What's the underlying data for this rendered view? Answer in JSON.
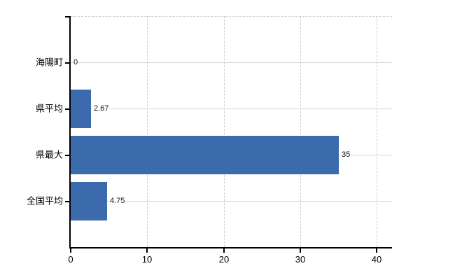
{
  "chart_data": {
    "type": "bar",
    "orientation": "horizontal",
    "title": "",
    "xlabel": "",
    "ylabel": "",
    "categories": [
      "海陽町",
      "県平均",
      "県最大",
      "全国平均"
    ],
    "values": [
      0,
      2.67,
      35,
      4.75
    ],
    "value_labels": [
      "0",
      "2.67",
      "35",
      "4.75"
    ],
    "x_ticks": [
      0,
      10,
      20,
      30,
      40
    ],
    "x_tick_labels": [
      "0",
      "10",
      "20",
      "30",
      "40"
    ],
    "xlim": [
      0,
      42
    ],
    "grid": true,
    "legend": false,
    "colors": {
      "bar": "#3c6bad",
      "axis": "#000000",
      "gridline": "#d3d3d3",
      "text": "#000000",
      "background": "#ffffff"
    }
  }
}
